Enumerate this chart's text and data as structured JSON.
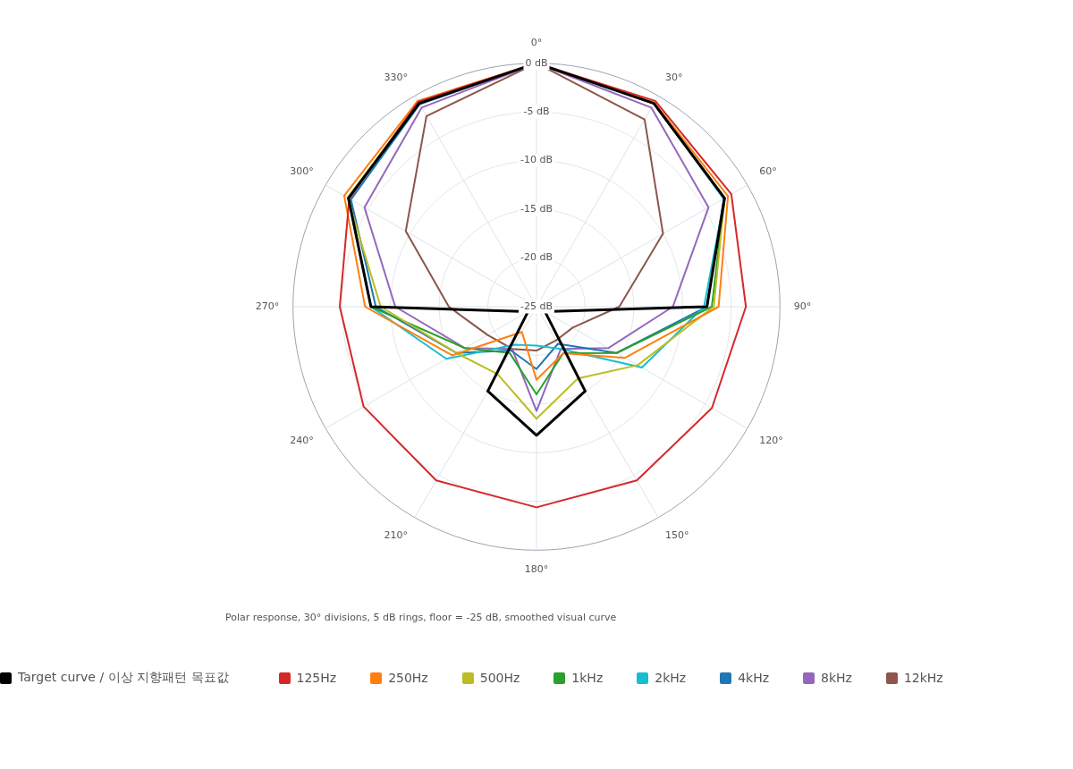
{
  "chart_data": {
    "type": "radar",
    "categories": [
      "0°",
      "30°",
      "60°",
      "90°",
      "120°",
      "150°",
      "180°",
      "210°",
      "240°",
      "270°",
      "300°",
      "330°"
    ],
    "ylim": [
      -25,
      0
    ],
    "yticks": [
      {
        "value": -25,
        "label": "-25 dB"
      },
      {
        "value": -20,
        "label": "-20 dB"
      },
      {
        "value": -15,
        "label": "-15 dB"
      },
      {
        "value": -10,
        "label": "-10 dB"
      },
      {
        "value": -5,
        "label": "-5 dB"
      },
      {
        "value": 0,
        "label": "0 dB"
      }
    ],
    "grid": true,
    "legend": "bottom",
    "marker": "none",
    "line_style": "solid",
    "annotations": [
      "Polar response, 30° divisions, 5 dB rings, floor = -25 dB, smoothed visual curve"
    ],
    "series": [
      {
        "name": "Target curve / 이상 지향패턴 목표값",
        "color": "#000000",
        "values": [
          0,
          -0.9,
          -2.7,
          -7.5,
          -24,
          -15,
          -11.8,
          -15,
          -24,
          -8,
          -2.7,
          -0.9
        ]
      },
      {
        "name": "125Hz",
        "color": "#d62728",
        "values": [
          0,
          -0.6,
          -1.9,
          -3.5,
          -4.2,
          -4.4,
          -4.4,
          -4.4,
          -4.5,
          -4.8,
          -2.8,
          -0.7
        ]
      },
      {
        "name": "250Hz",
        "color": "#ff7f0e",
        "values": [
          0,
          -0.8,
          -2.3,
          -6.3,
          -14.5,
          -19.5,
          -17.5,
          -22,
          -15,
          -7.4,
          -2.2,
          -0.6
        ]
      },
      {
        "name": "500Hz",
        "color": "#bcbd22",
        "values": [
          0,
          -0.9,
          -2.7,
          -6.8,
          -13,
          -16.5,
          -13.5,
          -17,
          -15.5,
          -9,
          -2.6,
          -0.8
        ]
      },
      {
        "name": "1kHz",
        "color": "#2ca02c",
        "values": [
          0,
          -0.9,
          -2.7,
          -7,
          -15.5,
          -19.5,
          -16,
          -19.5,
          -16.5,
          -8,
          -2.7,
          -0.9
        ]
      },
      {
        "name": "2kHz",
        "color": "#17becf",
        "values": [
          0,
          -0.9,
          -2.7,
          -7.8,
          -12.5,
          -20,
          -21,
          -20.5,
          -14.3,
          -8,
          -2.7,
          -0.9
        ]
      },
      {
        "name": "4kHz",
        "color": "#1f77b4",
        "values": [
          0,
          -0.9,
          -2.8,
          -7.5,
          -15.5,
          -20.6,
          -18.6,
          -19.8,
          -15.5,
          -8.5,
          -3.0,
          -1.0
        ]
      },
      {
        "name": "8kHz",
        "color": "#9467bd",
        "values": [
          0,
          -1.4,
          -4.6,
          -11,
          -16.5,
          -20,
          -14.3,
          -20,
          -16.5,
          -10.5,
          -4.6,
          -1.4
        ]
      },
      {
        "name": "12kHz",
        "color": "#8c564b",
        "values": [
          0,
          -2.8,
          -10,
          -16.5,
          -20.7,
          -21,
          -20.5,
          -20,
          -19.2,
          -16,
          -9.5,
          -2.4
        ]
      }
    ]
  }
}
